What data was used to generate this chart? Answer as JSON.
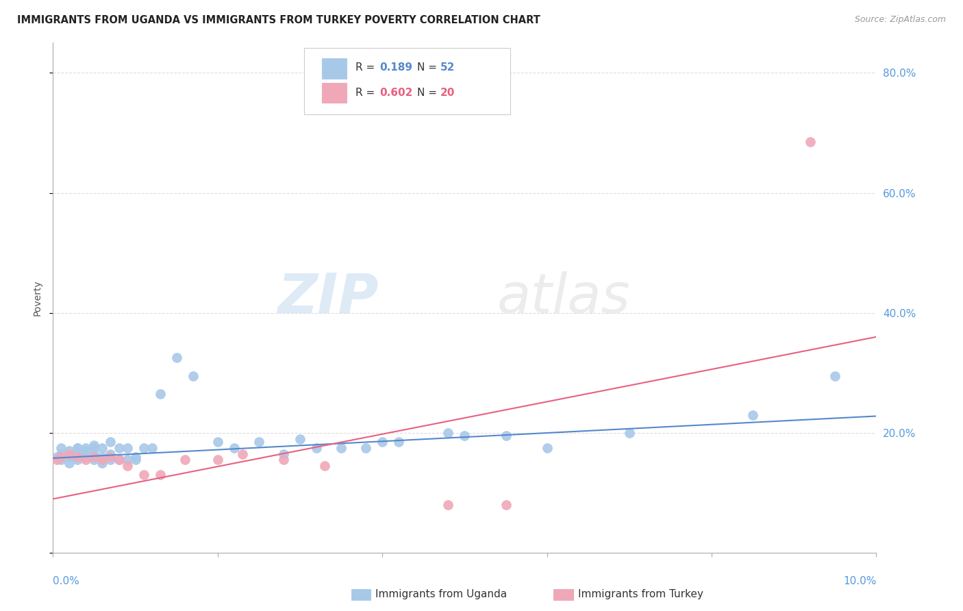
{
  "title": "IMMIGRANTS FROM UGANDA VS IMMIGRANTS FROM TURKEY POVERTY CORRELATION CHART",
  "source": "Source: ZipAtlas.com",
  "ylabel": "Poverty",
  "xlim": [
    0.0,
    0.1
  ],
  "ylim": [
    0.0,
    0.85
  ],
  "uganda_color": "#a8c8e8",
  "turkey_color": "#f0a8b8",
  "uganda_line_color": "#5588cc",
  "turkey_line_color": "#e86080",
  "background_color": "#ffffff",
  "uganda_x": [
    0.0005,
    0.001,
    0.001,
    0.001,
    0.002,
    0.002,
    0.002,
    0.003,
    0.003,
    0.003,
    0.003,
    0.004,
    0.004,
    0.004,
    0.005,
    0.005,
    0.005,
    0.005,
    0.006,
    0.006,
    0.006,
    0.007,
    0.007,
    0.007,
    0.008,
    0.008,
    0.009,
    0.009,
    0.01,
    0.01,
    0.011,
    0.012,
    0.013,
    0.015,
    0.017,
    0.02,
    0.022,
    0.025,
    0.028,
    0.03,
    0.032,
    0.035,
    0.038,
    0.04,
    0.042,
    0.048,
    0.05,
    0.055,
    0.06,
    0.07,
    0.085,
    0.095
  ],
  "uganda_y": [
    0.16,
    0.155,
    0.165,
    0.175,
    0.15,
    0.16,
    0.17,
    0.155,
    0.165,
    0.175,
    0.175,
    0.16,
    0.17,
    0.175,
    0.155,
    0.165,
    0.175,
    0.18,
    0.15,
    0.16,
    0.175,
    0.155,
    0.165,
    0.185,
    0.155,
    0.175,
    0.155,
    0.175,
    0.155,
    0.16,
    0.175,
    0.175,
    0.265,
    0.325,
    0.295,
    0.185,
    0.175,
    0.185,
    0.165,
    0.19,
    0.175,
    0.175,
    0.175,
    0.185,
    0.185,
    0.2,
    0.195,
    0.195,
    0.175,
    0.2,
    0.23,
    0.295
  ],
  "turkey_x": [
    0.0005,
    0.001,
    0.002,
    0.003,
    0.004,
    0.005,
    0.006,
    0.007,
    0.008,
    0.009,
    0.011,
    0.013,
    0.016,
    0.02,
    0.023,
    0.028,
    0.033,
    0.048,
    0.055,
    0.092
  ],
  "turkey_y": [
    0.155,
    0.16,
    0.165,
    0.16,
    0.155,
    0.16,
    0.155,
    0.16,
    0.155,
    0.145,
    0.13,
    0.13,
    0.155,
    0.155,
    0.165,
    0.155,
    0.145,
    0.08,
    0.08,
    0.685
  ],
  "uganda_trend_x": [
    0.0,
    0.1
  ],
  "uganda_trend_y": [
    0.158,
    0.228
  ],
  "turkey_trend_x": [
    0.0,
    0.1
  ],
  "turkey_trend_y": [
    0.09,
    0.36
  ]
}
